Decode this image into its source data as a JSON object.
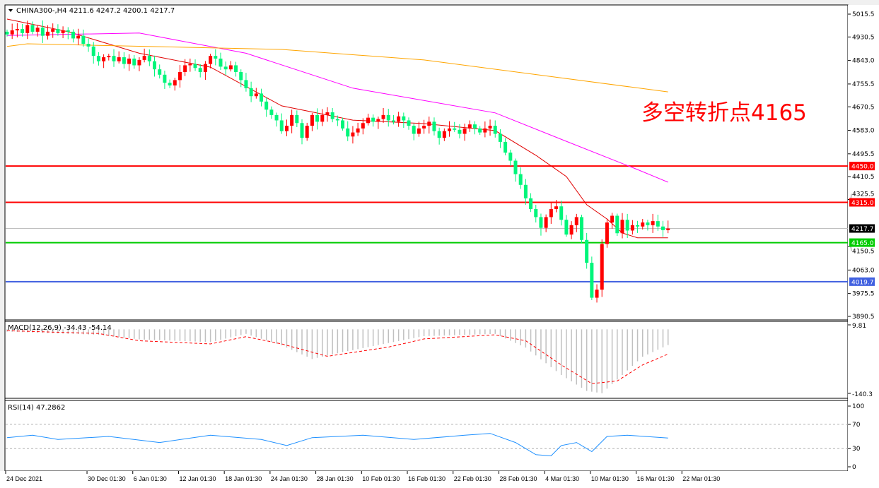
{
  "header": {
    "symbol_line": "CHINA300-,H4  4211.6 4247.2 4200.1 4217.7",
    "menu_icon": "triangle-down-icon"
  },
  "annotation": "多空转折点4165",
  "colors": {
    "bull": "#ff0000",
    "bear": "#00f57a",
    "ma_fast": "#e00000",
    "ma_mid": "#ff00ff",
    "ma_slow": "#ffa500",
    "macd_hist": "#c0c0c0",
    "macd_signal": "#ff0000",
    "rsi": "#1e90ff"
  },
  "chart_data": {
    "type": "candlestick",
    "price_axis": {
      "ylim": [
        3890.5,
        5015.5
      ],
      "ticks": [
        "5015.5",
        "4930.5",
        "4843.0",
        "4755.5",
        "4670.5",
        "4583.0",
        "4495.5",
        "4410.5",
        "4325.5",
        "4150.5",
        "4063.0",
        "3975.5",
        "3890.5"
      ]
    },
    "x_ticks": [
      {
        "bar": 0,
        "label": "24 Dec 2021"
      },
      {
        "bar": 16,
        "label": "30 Dec 01:30"
      },
      {
        "bar": 25,
        "label": "6 Jan 01:30"
      },
      {
        "bar": 34,
        "label": "12 Jan 01:30"
      },
      {
        "bar": 43,
        "label": "18 Jan 01:30"
      },
      {
        "bar": 52,
        "label": "24 Jan 01:30"
      },
      {
        "bar": 61,
        "label": "28 Jan 01:30"
      },
      {
        "bar": 70,
        "label": "10 Feb 01:30"
      },
      {
        "bar": 79,
        "label": "16 Feb 01:30"
      },
      {
        "bar": 88,
        "label": "22 Feb 01:30"
      },
      {
        "bar": 97,
        "label": "28 Feb 01:30"
      },
      {
        "bar": 106,
        "label": "4 Mar 01:30"
      },
      {
        "bar": 115,
        "label": "10 Mar 01:30"
      },
      {
        "bar": 124,
        "label": "16 Mar 01:30"
      },
      {
        "bar": 133,
        "label": "22 Mar 01:30"
      }
    ],
    "closes": [
      4940,
      4955,
      4960,
      4945,
      4975,
      4950,
      4965,
      4935,
      4950,
      4960,
      4945,
      4955,
      4950,
      4925,
      4935,
      4905,
      4895,
      4860,
      4840,
      4855,
      4860,
      4840,
      4855,
      4830,
      4850,
      4825,
      4845,
      4860,
      4840,
      4810,
      4790,
      4760,
      4750,
      4770,
      4800,
      4825,
      4830,
      4815,
      4800,
      4830,
      4860,
      4850,
      4820,
      4810,
      4825,
      4800,
      4770,
      4740,
      4710,
      4720,
      4690,
      4660,
      4640,
      4620,
      4580,
      4600,
      4640,
      4610,
      4555,
      4600,
      4640,
      4615,
      4640,
      4650,
      4625,
      4620,
      4590,
      4560,
      4575,
      4590,
      4610,
      4630,
      4615,
      4625,
      4640,
      4620,
      4615,
      4635,
      4620,
      4600,
      4570,
      4590,
      4600,
      4615,
      4580,
      4555,
      4580,
      4590,
      4585,
      4570,
      4590,
      4605,
      4590,
      4575,
      4590,
      4600,
      4570,
      4540,
      4500,
      4470,
      4420,
      4380,
      4330,
      4290,
      4260,
      4220,
      4260,
      4290,
      4300,
      4250,
      4195,
      4230,
      4260,
      4175,
      4090,
      3960,
      3990,
      4160,
      4240,
      4265,
      4200,
      4250,
      4210,
      4230,
      4225,
      4240,
      4230,
      4245,
      4225,
      4211.6,
      4217.7
    ],
    "last_bar": {
      "open": 4211.6,
      "high": 4247.2,
      "low": 4200.1,
      "close": 4217.7
    },
    "moving_averages": [
      {
        "color_key": "ma_fast",
        "points": [
          [
            0,
            4997
          ],
          [
            12,
            4950
          ],
          [
            26,
            4870
          ],
          [
            40,
            4818
          ],
          [
            54,
            4674
          ],
          [
            68,
            4621
          ],
          [
            82,
            4608
          ],
          [
            96,
            4582
          ],
          [
            104,
            4490
          ],
          [
            110,
            4411
          ],
          [
            114,
            4306
          ],
          [
            118,
            4253
          ],
          [
            121,
            4201
          ],
          [
            124,
            4183
          ],
          [
            130,
            4183
          ]
        ]
      },
      {
        "color_key": "ma_mid",
        "points": [
          [
            0,
            4936
          ],
          [
            26,
            4945
          ],
          [
            47,
            4870
          ],
          [
            68,
            4740
          ],
          [
            96,
            4648
          ],
          [
            110,
            4542
          ],
          [
            124,
            4437
          ],
          [
            130,
            4390
          ]
        ]
      },
      {
        "color_key": "ma_slow",
        "points": [
          [
            0,
            4895
          ],
          [
            4,
            4905
          ],
          [
            54,
            4884
          ],
          [
            82,
            4845
          ],
          [
            130,
            4726
          ]
        ]
      }
    ],
    "levels": [
      {
        "value": 4450.0,
        "label": "4450.0",
        "color": "#ff0000"
      },
      {
        "value": 4315.0,
        "label": "4315.0",
        "color": "#ff0000"
      },
      {
        "value": 4217.7,
        "label": "4217.7",
        "color": "#c0c0c0",
        "tag_color": "#000000"
      },
      {
        "value": 4165.0,
        "label": "4165.0",
        "color": "#00cc00"
      },
      {
        "value": 4019.7,
        "label": "4019.7",
        "color": "#4060e0"
      }
    ],
    "macd": {
      "title": "MACD(12,26,9) -34.43 -54.14",
      "ylim": [
        -140.3,
        9.81
      ],
      "ticks": [
        "9.81",
        "-140.3"
      ],
      "histogram": [
        [
          0,
          -5
        ],
        [
          18,
          -12
        ],
        [
          26,
          -22
        ],
        [
          40,
          -28
        ],
        [
          47,
          -10
        ],
        [
          54,
          -35
        ],
        [
          60,
          -65
        ],
        [
          66,
          -50
        ],
        [
          75,
          -30
        ],
        [
          82,
          -15
        ],
        [
          96,
          -10
        ],
        [
          102,
          -40
        ],
        [
          109,
          -100
        ],
        [
          114,
          -135
        ],
        [
          117,
          -140
        ],
        [
          120,
          -110
        ],
        [
          125,
          -60
        ],
        [
          130,
          -34.43
        ]
      ],
      "signal": [
        [
          0,
          -3
        ],
        [
          18,
          -9
        ],
        [
          26,
          -25
        ],
        [
          40,
          -32
        ],
        [
          47,
          -16
        ],
        [
          54,
          -32
        ],
        [
          63,
          -59
        ],
        [
          75,
          -39
        ],
        [
          82,
          -21
        ],
        [
          96,
          -12
        ],
        [
          102,
          -25
        ],
        [
          109,
          -78
        ],
        [
          115,
          -119
        ],
        [
          120,
          -113
        ],
        [
          125,
          -78
        ],
        [
          130,
          -54.14
        ]
      ]
    },
    "rsi": {
      "title": "RSI(14) 47.2862",
      "ylim": [
        0,
        100
      ],
      "ticks": [
        "100",
        "70",
        "30",
        "0"
      ],
      "levels": [
        70,
        30
      ],
      "points": [
        [
          0,
          48
        ],
        [
          5,
          52
        ],
        [
          10,
          45
        ],
        [
          20,
          50
        ],
        [
          30,
          40
        ],
        [
          40,
          52
        ],
        [
          50,
          45
        ],
        [
          55,
          35
        ],
        [
          60,
          48
        ],
        [
          70,
          52
        ],
        [
          80,
          45
        ],
        [
          90,
          52
        ],
        [
          95,
          55
        ],
        [
          100,
          40
        ],
        [
          104,
          20
        ],
        [
          107,
          18
        ],
        [
          109,
          35
        ],
        [
          112,
          40
        ],
        [
          115,
          25
        ],
        [
          118,
          50
        ],
        [
          122,
          52
        ],
        [
          130,
          47.29
        ]
      ]
    }
  }
}
